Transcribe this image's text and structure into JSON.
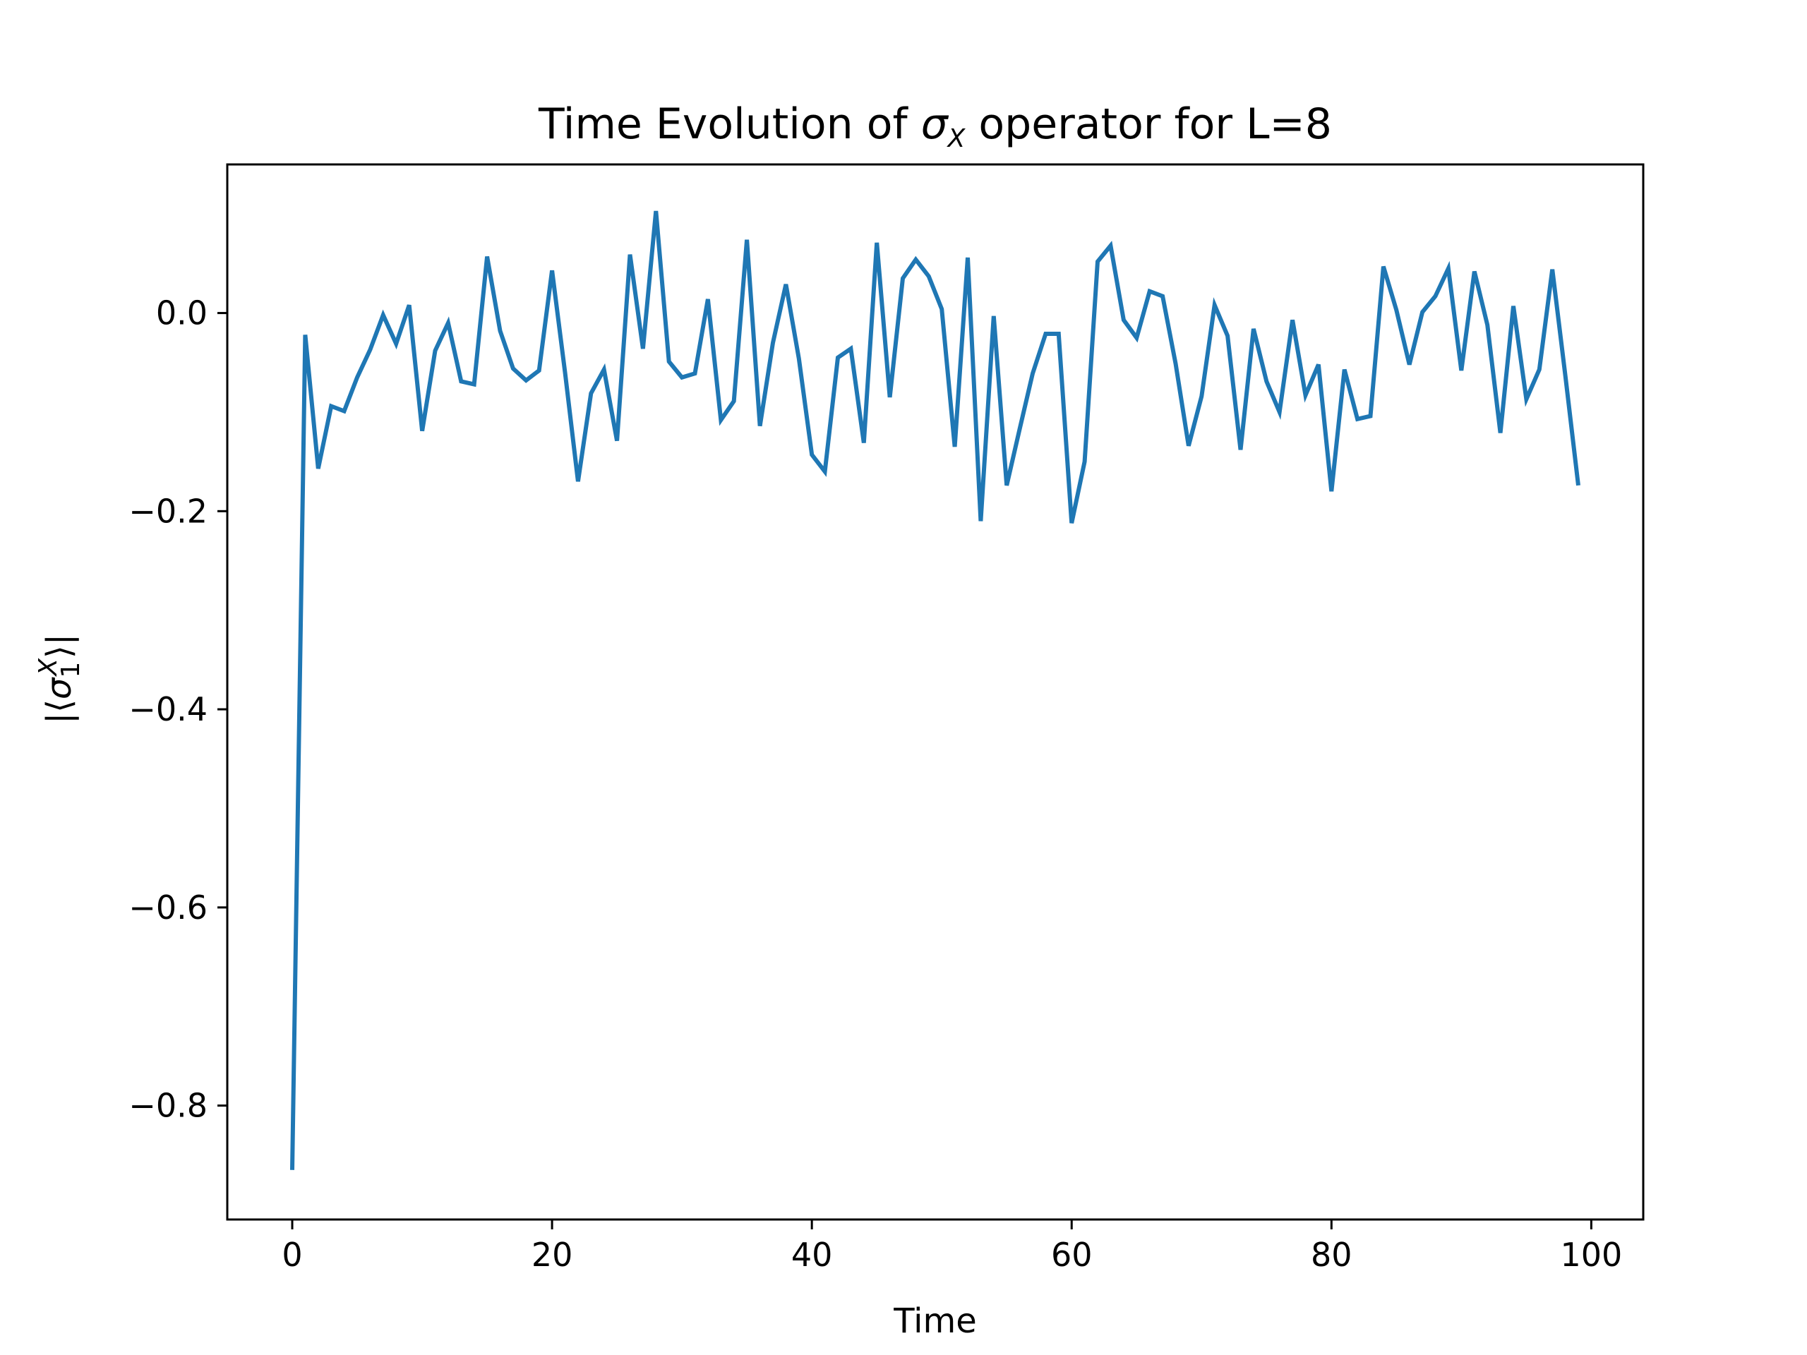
{
  "chart_data": {
    "type": "line",
    "title": "Time Evolution of σX operator for L=8",
    "title_parts": {
      "prefix": "Time Evolution of ",
      "symbol": "σ",
      "subscript": "X",
      "suffix": " operator for L=8"
    },
    "xlabel": "Time",
    "ylabel": "|⟨σ1X⟩|",
    "ylabel_parts": {
      "open": "|⟨",
      "symbol": "σ",
      "subscript": "1",
      "superscript": "X",
      "close": "⟩|"
    },
    "xlim": [
      -5,
      104
    ],
    "ylim": [
      -0.915,
      0.15
    ],
    "xticks": [
      0,
      20,
      40,
      60,
      80,
      100
    ],
    "xtick_labels": [
      "0",
      "20",
      "40",
      "60",
      "80",
      "100"
    ],
    "yticks": [
      0.0,
      -0.2,
      -0.4,
      -0.6,
      -0.8
    ],
    "ytick_labels": [
      "0.0",
      "−0.2",
      "−0.4",
      "−0.6",
      "−0.8"
    ],
    "grid": false,
    "series": [
      {
        "color": "#1f77b4",
        "x": [
          0,
          1,
          2,
          3,
          4,
          5,
          6,
          7,
          8,
          9,
          10,
          11,
          12,
          13,
          14,
          15,
          16,
          17,
          18,
          19,
          20,
          21,
          22,
          23,
          24,
          25,
          26,
          27,
          28,
          29,
          30,
          31,
          32,
          33,
          34,
          35,
          36,
          37,
          38,
          39,
          40,
          41,
          42,
          43,
          44,
          45,
          46,
          47,
          48,
          49,
          50,
          51,
          52,
          53,
          54,
          55,
          56,
          57,
          58,
          59,
          60,
          61,
          62,
          63,
          64,
          65,
          66,
          67,
          68,
          69,
          70,
          71,
          72,
          73,
          74,
          75,
          76,
          77,
          78,
          79,
          80,
          81,
          82,
          83,
          84,
          85,
          86,
          87,
          88,
          89,
          90,
          91,
          92,
          93,
          94,
          95,
          96,
          97,
          98,
          99
        ],
        "y": [
          -0.865,
          -0.022,
          -0.157,
          -0.094,
          -0.099,
          -0.065,
          -0.037,
          -0.002,
          -0.031,
          0.008,
          -0.119,
          -0.038,
          -0.01,
          -0.069,
          -0.072,
          0.057,
          -0.018,
          -0.056,
          -0.068,
          -0.058,
          0.043,
          -0.06,
          -0.17,
          -0.081,
          -0.057,
          -0.129,
          0.059,
          -0.036,
          0.103,
          -0.049,
          -0.065,
          -0.061,
          0.014,
          -0.108,
          -0.089,
          0.074,
          -0.114,
          -0.03,
          0.029,
          -0.046,
          -0.143,
          -0.16,
          -0.045,
          -0.036,
          -0.131,
          0.071,
          -0.085,
          0.035,
          0.054,
          0.037,
          0.004,
          -0.135,
          0.056,
          -0.21,
          -0.003,
          -0.174,
          -0.117,
          -0.061,
          -0.021,
          -0.021,
          -0.212,
          -0.15,
          0.052,
          0.068,
          -0.007,
          -0.025,
          0.022,
          0.017,
          -0.051,
          -0.134,
          -0.084,
          0.008,
          -0.023,
          -0.138,
          -0.016,
          -0.069,
          -0.1,
          -0.007,
          -0.083,
          -0.052,
          -0.18,
          -0.057,
          -0.107,
          -0.104,
          0.047,
          0.003,
          -0.052,
          0.001,
          0.017,
          0.045,
          -0.058,
          0.042,
          -0.012,
          -0.121,
          0.007,
          -0.087,
          -0.057,
          0.044,
          -0.063,
          -0.174
        ]
      }
    ]
  }
}
